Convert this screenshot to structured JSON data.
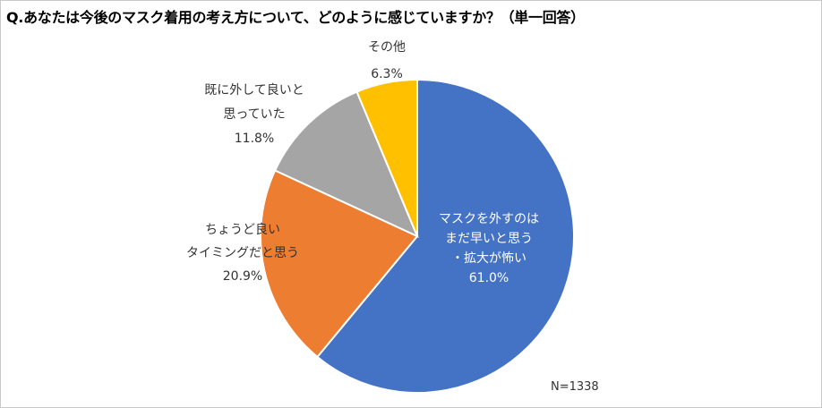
{
  "title": "Q.あなたは今後のマスク着用の考え方について、どのように感じていますか？（単一回答）",
  "note": "N=1338",
  "colors": {
    "blue": "#4472c4",
    "orange": "#ed7d31",
    "gray": "#a5a5a5",
    "yellow": "#ffc000"
  },
  "chart_data": {
    "type": "pie",
    "title": "Q.あなたは今後のマスク着用の考え方について、どのように感じていますか？（単一回答）",
    "slices": [
      {
        "label_lines": [
          "マスクを外すのは",
          "まだ早いと思う",
          "・拡大が怖い"
        ],
        "value": 61.0,
        "value_label": "61.0%",
        "color": "#4472c4"
      },
      {
        "label_lines": [
          "ちょうど良い",
          "タイミングだと思う"
        ],
        "value": 20.9,
        "value_label": "20.9%",
        "color": "#ed7d31"
      },
      {
        "label_lines": [
          "既に外して良いと",
          "思っていた"
        ],
        "value": 11.8,
        "value_label": "11.8%",
        "color": "#a5a5a5"
      },
      {
        "label_lines": [
          "その他"
        ],
        "value": 6.3,
        "value_label": "6.3%",
        "color": "#ffc000"
      }
    ],
    "n_label": "N=1338"
  }
}
